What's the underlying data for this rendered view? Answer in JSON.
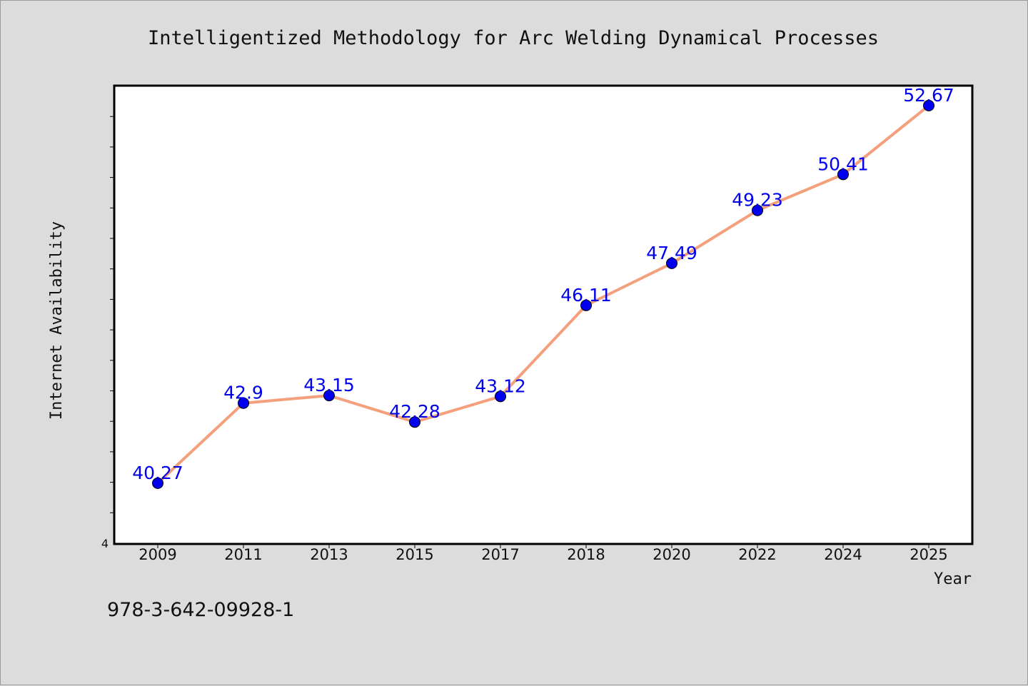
{
  "chart_data": {
    "type": "line",
    "title": "Intelligentized Methodology for Arc Welding Dynamical Processes",
    "xlabel": "Year",
    "ylabel": "Internet Availability",
    "categories": [
      "2009",
      "2011",
      "2013",
      "2015",
      "2017",
      "2018",
      "2020",
      "2022",
      "2024",
      "2025"
    ],
    "series": [
      {
        "values": [
          40.27,
          42.9,
          43.15,
          42.28,
          43.12,
          46.11,
          47.49,
          49.23,
          50.41,
          52.67
        ],
        "labels": [
          "40.27",
          "42.9",
          "43.15",
          "42.28",
          "43.12",
          "46.11",
          "47.49",
          "49.23",
          "50.41",
          "52.67"
        ]
      }
    ],
    "ylim": [
      38.3,
      53.3
    ],
    "ytick_label": "4",
    "grid": false,
    "line_color": "#f4a07c",
    "marker_color": "#0000ee",
    "label_color": "#0000ee",
    "background": "#ffffff",
    "page_background": "#dcdcdc"
  },
  "footer_note": "978-3-642-09928-1"
}
